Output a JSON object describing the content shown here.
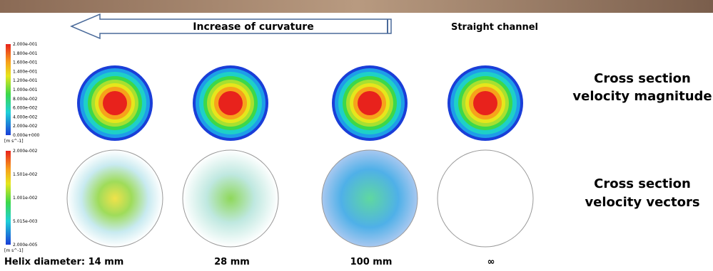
{
  "header": {
    "arrow_label": "Increase of curvature",
    "straight_label": "Straight channel"
  },
  "colorbars": [
    {
      "ticks": [
        "2.000e-001",
        "1.800e-001",
        "1.600e-001",
        "1.400e-001",
        "1.200e-001",
        "1.000e-001",
        "8.000e-002",
        "6.000e-002",
        "4.000e-002",
        "2.000e-002",
        "0.000e+000"
      ],
      "unit": "[m s^-1]"
    },
    {
      "ticks": [
        "2.000e-002",
        "1.501e-002",
        "1.001e-002",
        "5.015e-003",
        "2.000e-005"
      ],
      "unit": "[m s^-1]"
    }
  ],
  "row_labels": [
    [
      "Cross section",
      "velocity magnitude"
    ],
    [
      "Cross section",
      "velocity vectors"
    ]
  ],
  "columns": [
    "Helix diameter: 14 mm",
    "28 mm",
    "100 mm",
    "∞"
  ]
}
